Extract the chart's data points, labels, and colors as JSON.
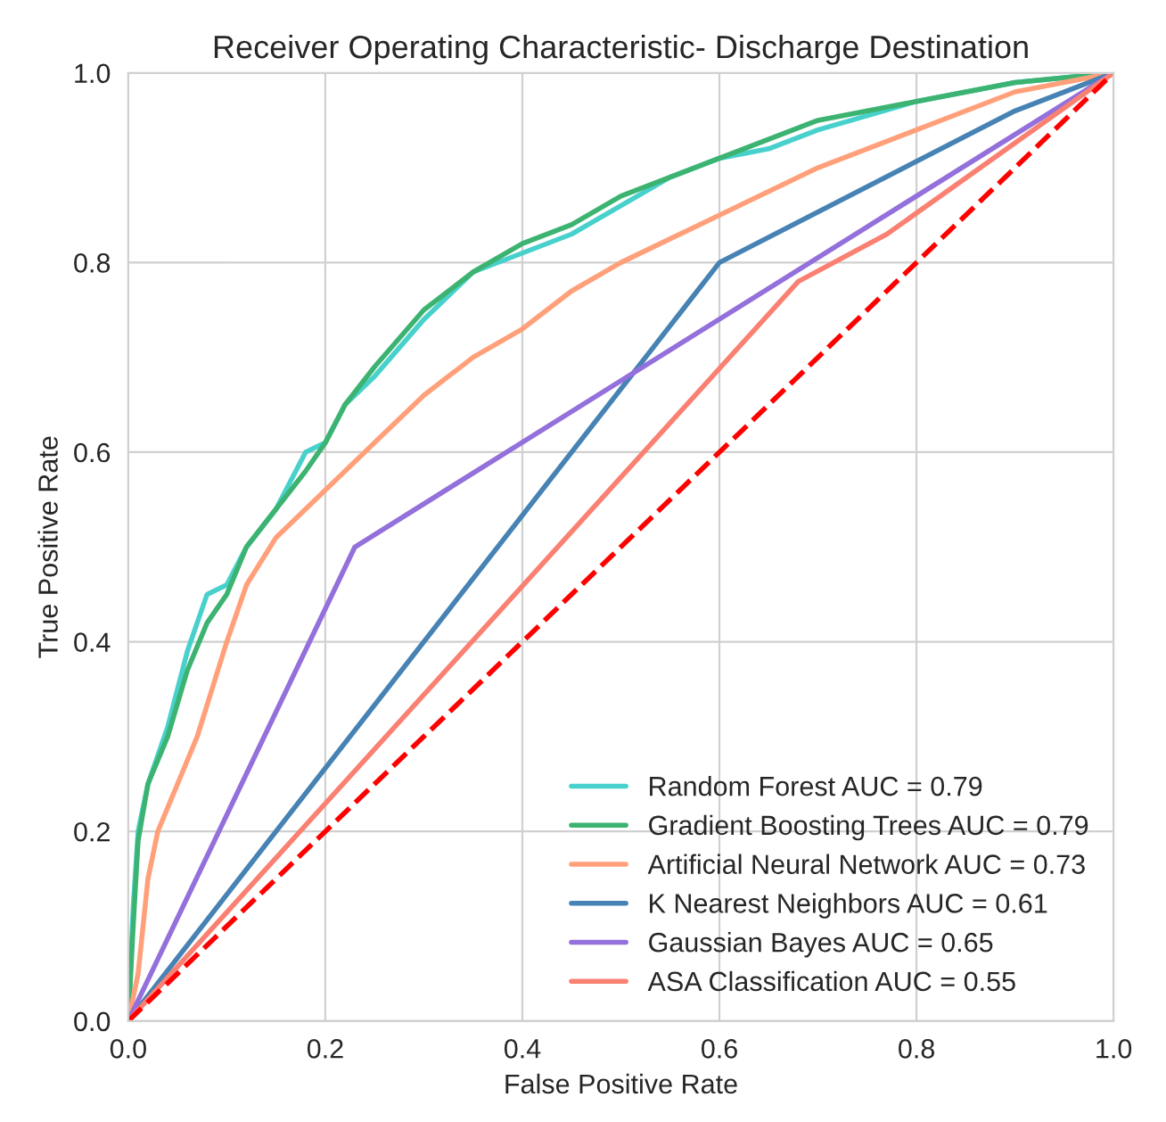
{
  "chart_data": {
    "type": "line",
    "title": "Receiver Operating Characteristic- Discharge Destination",
    "xlabel": "False Positive Rate",
    "ylabel": "True Positive Rate",
    "xlim": [
      0,
      1
    ],
    "ylim": [
      0,
      1
    ],
    "xticks": [
      {
        "value": 0,
        "label": "0.0"
      },
      0.2,
      0.4,
      0.6,
      0.8,
      {
        "value": 1,
        "label": "1.0"
      }
    ],
    "yticks": [
      {
        "value": 0,
        "label": "0.0"
      },
      0.2,
      0.4,
      0.6,
      0.8,
      {
        "value": 1,
        "label": "1.0"
      }
    ],
    "grid": true,
    "legend": "bottom right",
    "line_style": "solid",
    "series": [
      {
        "name": "Random Forest AUC = 0.79",
        "color": "#48d1cc",
        "x": [
          0,
          0.005,
          0.01,
          0.02,
          0.04,
          0.06,
          0.08,
          0.1,
          0.12,
          0.15,
          0.18,
          0.2,
          0.22,
          0.25,
          0.3,
          0.35,
          0.4,
          0.45,
          0.5,
          0.55,
          0.6,
          0.65,
          0.7,
          0.8,
          0.9,
          1
        ],
        "values": [
          0,
          0.12,
          0.2,
          0.25,
          0.31,
          0.39,
          0.45,
          0.46,
          0.5,
          0.54,
          0.6,
          0.61,
          0.65,
          0.68,
          0.74,
          0.79,
          0.81,
          0.83,
          0.86,
          0.89,
          0.91,
          0.92,
          0.94,
          0.97,
          0.99,
          1
        ]
      },
      {
        "name": "Gradient Boosting Trees AUC = 0.79",
        "color": "#3cb371",
        "x": [
          0,
          0.005,
          0.01,
          0.02,
          0.04,
          0.06,
          0.08,
          0.1,
          0.12,
          0.15,
          0.18,
          0.2,
          0.22,
          0.25,
          0.3,
          0.35,
          0.4,
          0.45,
          0.5,
          0.55,
          0.6,
          0.65,
          0.7,
          0.8,
          0.9,
          1
        ],
        "values": [
          0,
          0.1,
          0.19,
          0.25,
          0.3,
          0.37,
          0.42,
          0.45,
          0.5,
          0.54,
          0.58,
          0.61,
          0.65,
          0.69,
          0.75,
          0.79,
          0.82,
          0.84,
          0.87,
          0.89,
          0.91,
          0.93,
          0.95,
          0.97,
          0.99,
          1
        ]
      },
      {
        "name": "Artificial Neural Network AUC = 0.73",
        "color": "#ffa07a",
        "x": [
          0,
          0.01,
          0.02,
          0.03,
          0.05,
          0.07,
          0.1,
          0.12,
          0.15,
          0.2,
          0.25,
          0.3,
          0.35,
          0.4,
          0.45,
          0.5,
          0.6,
          0.7,
          0.8,
          0.9,
          1
        ],
        "values": [
          0,
          0.05,
          0.15,
          0.2,
          0.25,
          0.3,
          0.4,
          0.46,
          0.51,
          0.56,
          0.61,
          0.66,
          0.7,
          0.73,
          0.77,
          0.8,
          0.85,
          0.9,
          0.94,
          0.98,
          1
        ]
      },
      {
        "name": "K Nearest Neighbors AUC = 0.61",
        "color": "#4682b4",
        "x": [
          0,
          0.6,
          0.9,
          1
        ],
        "values": [
          0,
          0.8,
          0.96,
          1
        ]
      },
      {
        "name": "Gaussian Bayes AUC = 0.65",
        "color": "#9370db",
        "x": [
          0,
          0.23,
          1
        ],
        "values": [
          0,
          0.5,
          1
        ]
      },
      {
        "name": "ASA Classification AUC = 0.55",
        "color": "#fa8072",
        "x": [
          0,
          0.68,
          0.77,
          1
        ],
        "values": [
          0,
          0.78,
          0.83,
          1
        ]
      },
      {
        "color": "#ff0000",
        "line_style": "dashed",
        "x": [
          0,
          1
        ],
        "values": [
          0,
          1
        ]
      }
    ]
  }
}
